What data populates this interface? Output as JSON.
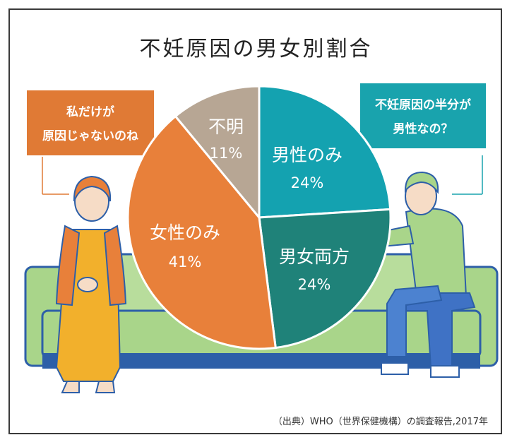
{
  "title": "不妊原因の男女別割合",
  "source": "（出典）WHO（世界保健機構）の調査報告,2017年",
  "woman_bubble": {
    "lines": [
      "私だけが",
      "原因じゃないのね"
    ]
  },
  "man_bubble": {
    "lines": [
      "不妊原因の半分が",
      "男性なの？"
    ]
  },
  "colors": {
    "male_only": "#14a2b0",
    "both": "#1f8279",
    "female_only": "#e8803a",
    "unknown": "#b7a694",
    "woman_bubble": "#e07a35",
    "man_bubble": "#19a3ad",
    "sofa": "#a9d58a",
    "sofa_edge": "#2d5fa8"
  },
  "chart_data": {
    "type": "pie",
    "title": "不妊原因の男女別割合",
    "slices": [
      {
        "label": "男性のみ",
        "value": 24,
        "display": "24%",
        "color": "#14a2b0"
      },
      {
        "label": "男女両方",
        "value": 24,
        "display": "24%",
        "color": "#1f8279"
      },
      {
        "label": "女性のみ",
        "value": 41,
        "display": "41%",
        "color": "#e8803a"
      },
      {
        "label": "不明",
        "value": 11,
        "display": "11%",
        "color": "#b7a694"
      }
    ]
  }
}
